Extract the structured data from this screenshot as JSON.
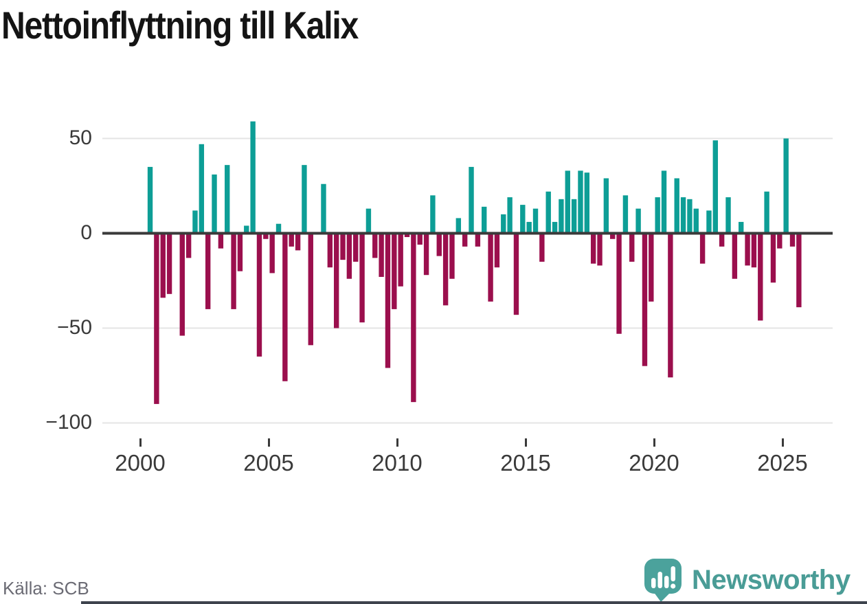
{
  "title": "Nettoinflyttning till Kalix",
  "source": "Källa: SCB",
  "brand": {
    "name": "Newsworthy",
    "icon": "bar-chart-speech-bubble",
    "color": "#4a9c96"
  },
  "colors": {
    "positive_bar": "#0d9e96",
    "negative_bar": "#9b0f4d",
    "gridline": "#e4e4e4",
    "zero_line": "#3a3a3a",
    "tick": "#3a3a3a"
  },
  "chart_data": {
    "type": "bar",
    "title": "Nettoinflyttning till Kalix",
    "xlabel": "",
    "ylabel": "",
    "x_unit": "quarter",
    "start_year": 2000,
    "start_quarter": 2,
    "end_year": 2025,
    "end_quarter": 3,
    "x_ticks": [
      2000,
      2005,
      2010,
      2015,
      2020,
      2025
    ],
    "x_tick_labels": [
      "2000",
      "2005",
      "2010",
      "2015",
      "2020",
      "2025"
    ],
    "y_ticks": [
      50,
      0,
      -50,
      -100
    ],
    "y_tick_labels": [
      "50",
      "0",
      "−50",
      "−100"
    ],
    "ylim": [
      -100,
      61
    ],
    "grid": "horizontal",
    "legend": "none",
    "values": [
      35,
      -90,
      -34,
      -32,
      0,
      -54,
      -13,
      12,
      47,
      -40,
      31,
      -8,
      36,
      -40,
      -20,
      4,
      59,
      -65,
      -3,
      -21,
      5,
      -78,
      -7,
      -9,
      36,
      -59,
      0,
      26,
      -18,
      -50,
      -14,
      -24,
      -15,
      -47,
      13,
      -13,
      -23,
      -71,
      -40,
      -28,
      -2,
      -89,
      -6,
      -22,
      20,
      -12,
      -38,
      -24,
      8,
      -7,
      35,
      -7,
      14,
      -36,
      -18,
      10,
      19,
      -43,
      15,
      6,
      13,
      -15,
      22,
      6,
      18,
      33,
      18,
      33,
      32,
      -16,
      -17,
      29,
      -3,
      -53,
      20,
      -15,
      13,
      -70,
      -36,
      19,
      33,
      -76,
      29,
      19,
      18,
      13,
      -16,
      12,
      49,
      -7,
      19,
      -24,
      6,
      -17,
      -18,
      -46,
      22,
      -26,
      -8,
      50,
      -7,
      -39
    ]
  }
}
